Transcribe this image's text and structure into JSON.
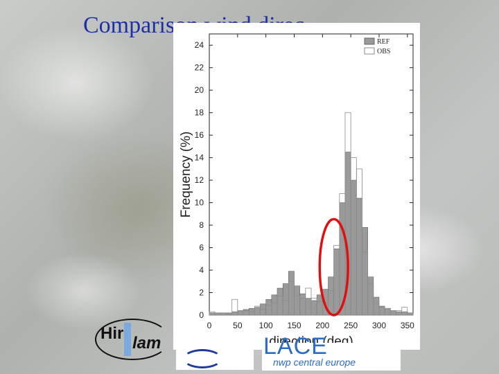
{
  "slide": {
    "title": "Comparison wind direc",
    "logos": {
      "hirlam_hir": "Hir",
      "hirlam_lam": "lam",
      "aladin_big": "LACE",
      "aladin_small": "nwp central europe"
    }
  },
  "colors": {
    "title": "#1e2fa8",
    "ref_fill": "#9a9a9a",
    "obs_fill": "#ffffff",
    "highlight": "#e01010"
  },
  "chart_data": {
    "type": "bar",
    "title": "",
    "xlabel": "direction (deg)",
    "ylabel": "Frequency (%)",
    "xlim": [
      0,
      360
    ],
    "ylim": [
      0,
      25
    ],
    "xticks": [
      0,
      50,
      100,
      150,
      200,
      250,
      300,
      350
    ],
    "yticks": [
      0,
      2,
      4,
      6,
      8,
      10,
      12,
      14,
      16,
      18,
      20,
      22,
      24
    ],
    "bin_width": 10,
    "bin_starts": [
      0,
      10,
      20,
      30,
      40,
      50,
      60,
      70,
      80,
      90,
      100,
      110,
      120,
      130,
      140,
      150,
      160,
      170,
      180,
      190,
      200,
      210,
      220,
      230,
      240,
      250,
      260,
      270,
      280,
      290,
      300,
      310,
      320,
      330,
      340,
      350
    ],
    "legend": {
      "position": "top-right"
    },
    "series": [
      {
        "name": "REF",
        "values": [
          0.2,
          0.2,
          0.2,
          0.2,
          0.3,
          0.4,
          0.5,
          0.6,
          0.7,
          1.0,
          1.4,
          1.8,
          2.4,
          2.8,
          3.9,
          2.6,
          1.9,
          1.5,
          1.3,
          1.8,
          2.3,
          3.4,
          5.9,
          10.0,
          14.5,
          12.0,
          10.4,
          7.8,
          3.4,
          1.6,
          0.8,
          0.6,
          0.4,
          0.3,
          0.3,
          0.2
        ]
      },
      {
        "name": "OBS",
        "values": [
          0.3,
          0.2,
          0.2,
          0.1,
          1.4,
          0.4,
          0.4,
          0.3,
          0.8,
          0.5,
          0.9,
          1.1,
          1.7,
          1.3,
          3.0,
          1.7,
          1.5,
          2.4,
          1.5,
          1.2,
          1.1,
          2.2,
          6.2,
          10.8,
          18.0,
          14.0,
          13.0,
          5.6,
          2.8,
          1.0,
          0.7,
          0.6,
          0.4,
          0.4,
          0.7,
          0.2
        ]
      }
    ],
    "annotation": {
      "shape": "ellipse",
      "x_range": [
        195,
        245
      ],
      "y_range": [
        0,
        7.8
      ]
    }
  }
}
